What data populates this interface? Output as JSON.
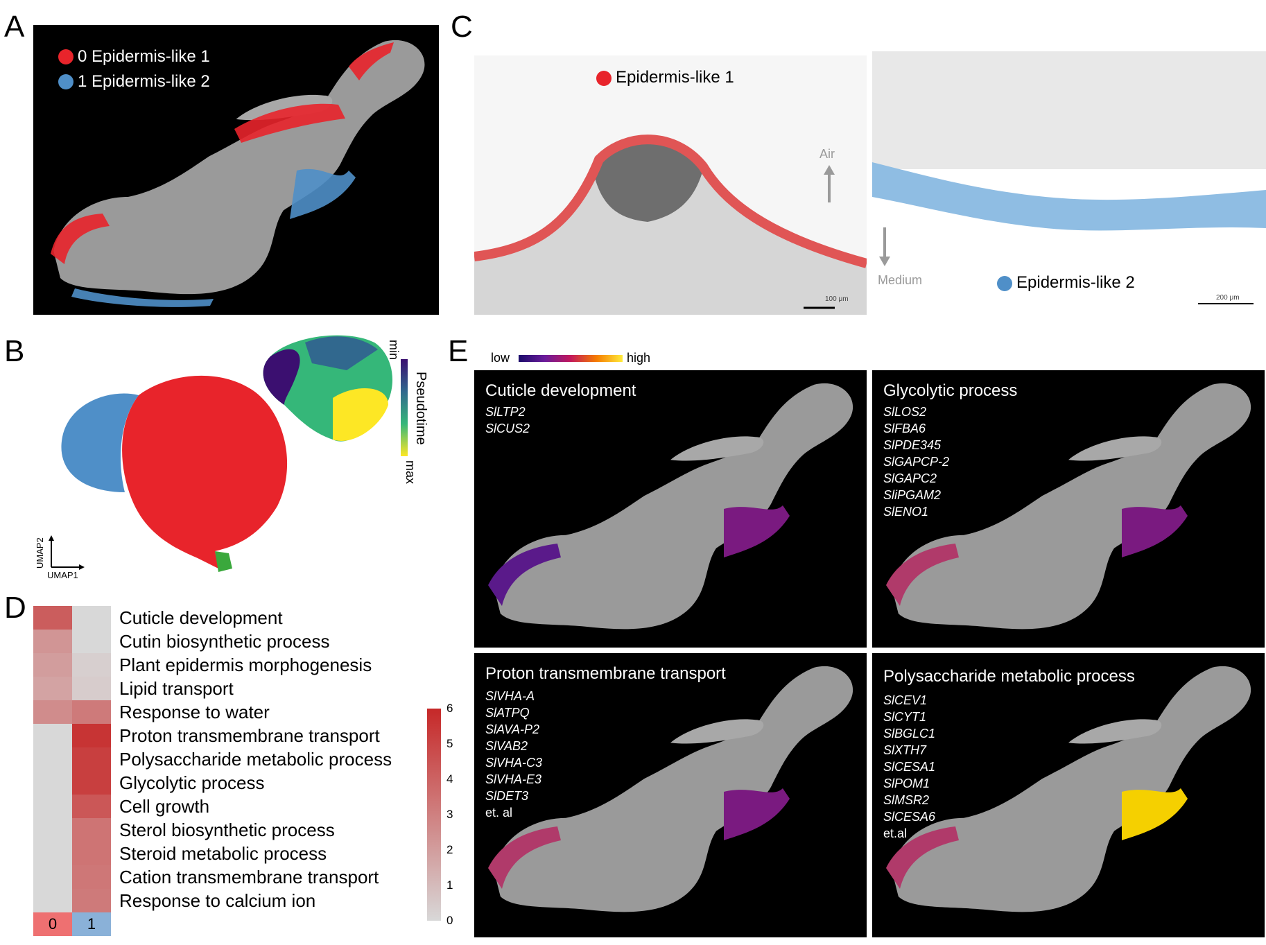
{
  "panels": {
    "A": {
      "letter": "A",
      "legend": [
        {
          "label": "0 Epidermis-like 1",
          "color": "#e8242b"
        },
        {
          "label": "1 Epidermis-like 2",
          "color": "#4f8fc8"
        }
      ]
    },
    "B": {
      "letter": "B",
      "axis_y": "UMAP2",
      "axis_x": "UMAP1",
      "pseudotime": {
        "label": "Pseudotime",
        "min": "min",
        "max": "max"
      },
      "colors": {
        "red": "#e8242b",
        "blue": "#4f8fc8",
        "green": "#3aa83c"
      }
    },
    "C": {
      "letter": "C",
      "label1": "Epidermis-like 1",
      "label2": "Epidermis-like 2",
      "air": "Air",
      "medium": "Medium",
      "scale1": "100 μm",
      "scale2": "200 μm"
    },
    "D": {
      "letter": "D",
      "terms": [
        "Cuticle development",
        "Cutin biosynthetic process",
        "Plant epidermis morphogenesis",
        "Lipid transport",
        "Response to water",
        "Proton transmembrane transport",
        "Polysaccharide metabolic process",
        "Glycolytic process",
        "Cell growth",
        "Sterol biosynthetic process",
        "Steroid metabolic process",
        "Cation transmembrane transport",
        "Response to calcium ion"
      ],
      "values_cluster0": [
        4.2,
        2.3,
        2.0,
        1.8,
        2.6,
        0,
        0,
        0,
        0,
        0,
        0,
        0,
        0
      ],
      "values_cluster1": [
        0,
        0,
        0.3,
        0.4,
        3.2,
        5.6,
        5.2,
        5.2,
        4.4,
        3.4,
        3.4,
        3.3,
        3.2
      ],
      "columns": [
        "0",
        "1"
      ],
      "column_colors": [
        "#ee7071",
        "#8ab1d8"
      ],
      "scale_ticks": [
        "6",
        "5",
        "4",
        "3",
        "2",
        "1",
        "0"
      ]
    },
    "E": {
      "letter": "E",
      "colorbar": {
        "low": "low",
        "high": "high"
      },
      "maps": [
        {
          "title": "Cuticle development",
          "genes": [
            "SlLTP2",
            "SlCUS2"
          ],
          "suffix": ""
        },
        {
          "title": "Glycolytic process",
          "genes": [
            "SlLOS2",
            "SlFBA6",
            "SlPDE345",
            "SlGAPCP-2",
            "SlGAPC2",
            "SliPGAM2",
            "SlENO1"
          ],
          "suffix": ""
        },
        {
          "title": "Proton transmembrane transport",
          "genes": [
            "SlVHA-A",
            "SlATPQ",
            "SlAVA-P2",
            "SlVAB2",
            "SlVHA-C3",
            "SlVHA-E3",
            "SlDET3"
          ],
          "suffix": "et. al"
        },
        {
          "title": "Polysaccharide metabolic process",
          "genes": [
            "SlCEV1",
            "SlCYT1",
            "SlBGLC1",
            "SlXTH7",
            "SlCESA1",
            "SlPOM1",
            "SlMSR2",
            "SlCESA6"
          ],
          "suffix": "et.al"
        }
      ]
    }
  }
}
